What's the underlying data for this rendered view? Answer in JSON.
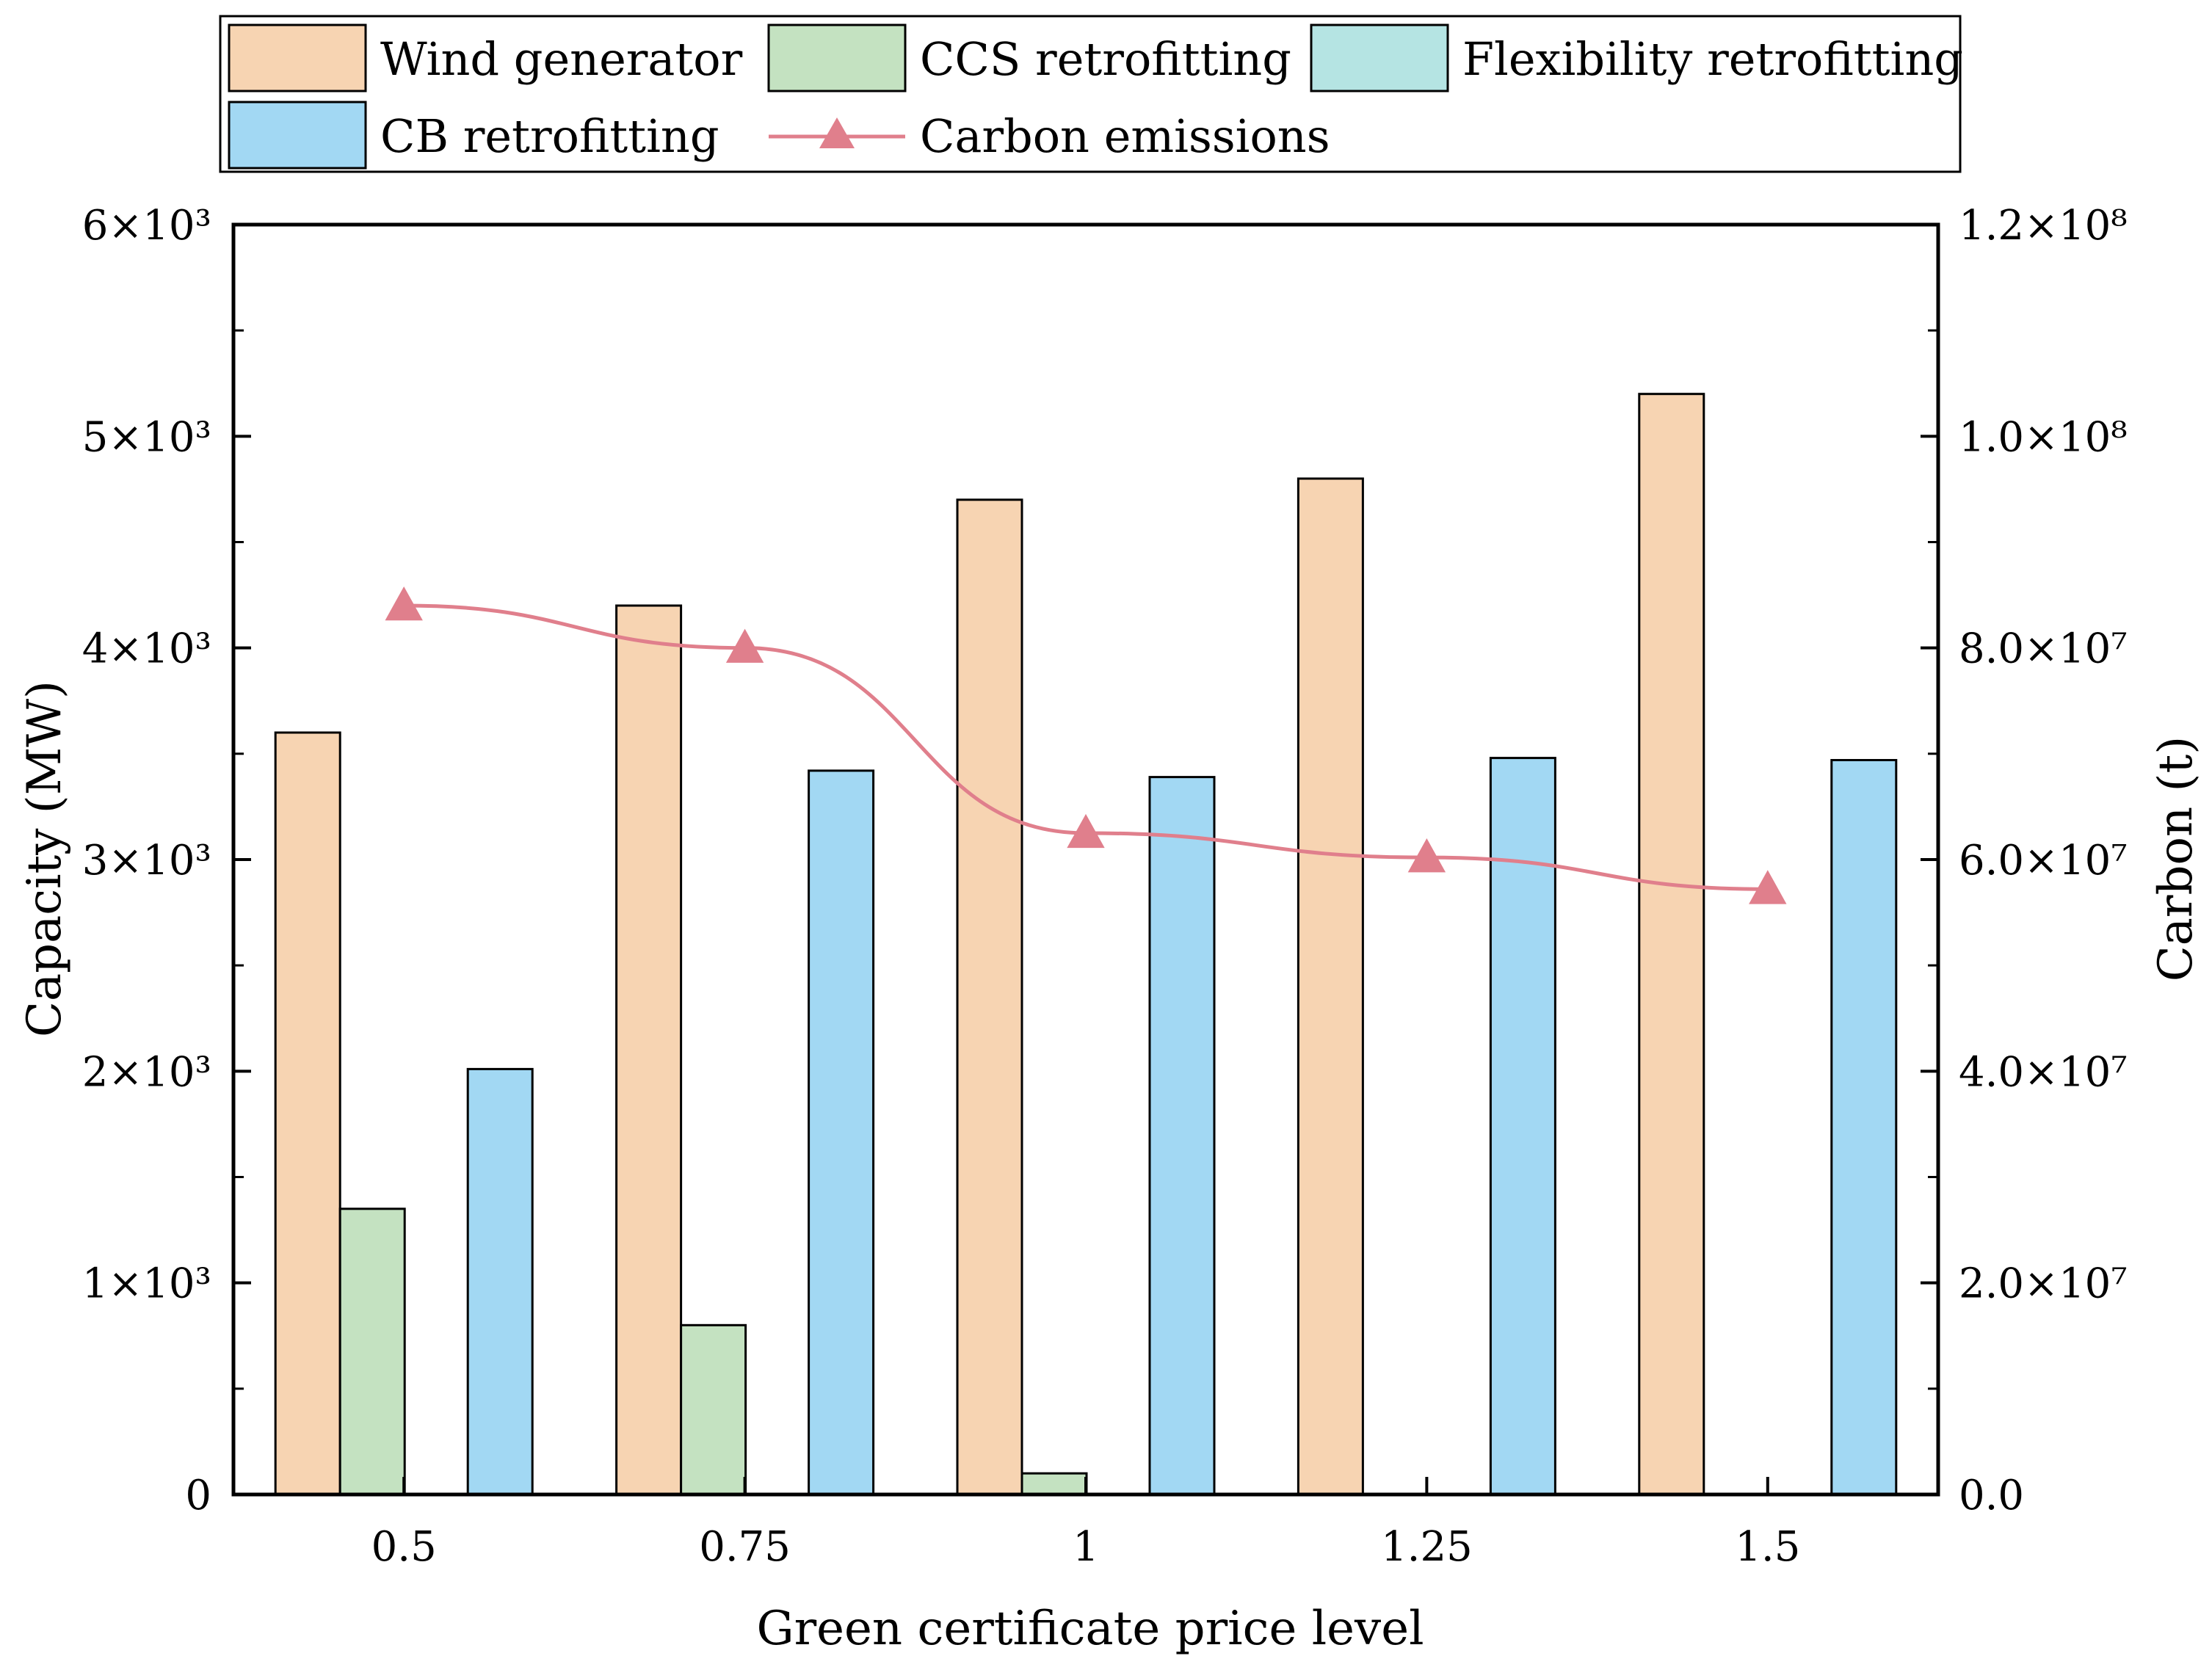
{
  "chart_data": {
    "type": "bar",
    "xlabel": "Green certificate price level",
    "ylabel": "Capacity (MW)",
    "y2label": "Carbon (t)",
    "categories": [
      "0.5",
      "0.75",
      "1",
      "1.25",
      "1.5"
    ],
    "ylim": [
      0,
      6000
    ],
    "y2lim": [
      0,
      120000000
    ],
    "yticks": [
      {
        "value": 0,
        "label": "0"
      },
      {
        "value": 1000,
        "label": "1×10³"
      },
      {
        "value": 2000,
        "label": "2×10³"
      },
      {
        "value": 3000,
        "label": "3×10³"
      },
      {
        "value": 4000,
        "label": "4×10³"
      },
      {
        "value": 5000,
        "label": "5×10³"
      },
      {
        "value": 6000,
        "label": "6×10³"
      }
    ],
    "y2ticks": [
      {
        "value": 0,
        "label": "0.0"
      },
      {
        "value": 20000000,
        "label": "2.0×10⁷"
      },
      {
        "value": 40000000,
        "label": "4.0×10⁷"
      },
      {
        "value": 60000000,
        "label": "6.0×10⁷"
      },
      {
        "value": 80000000,
        "label": "8.0×10⁷"
      },
      {
        "value": 100000000,
        "label": "1.0×10⁸"
      },
      {
        "value": 120000000,
        "label": "1.2×10⁸"
      }
    ],
    "series": [
      {
        "name": "Wind generator",
        "kind": "bar",
        "color": "#f7d4b2",
        "values": [
          3600,
          4200,
          4700,
          4800,
          5200
        ]
      },
      {
        "name": "CCS retrofitting",
        "kind": "bar",
        "color": "#c4e2c1",
        "values": [
          1350,
          800,
          100,
          0,
          0
        ]
      },
      {
        "name": "Flexibility retrofitting",
        "kind": "bar",
        "color": "#b5e4e3",
        "values": [
          0,
          0,
          0,
          0,
          0
        ]
      },
      {
        "name": "CB retrofitting",
        "kind": "bar",
        "color": "#a2d8f3",
        "values": [
          2010,
          3420,
          3390,
          3480,
          3470
        ]
      },
      {
        "name": "Carbon emissions",
        "kind": "line",
        "axis": "right",
        "color": "#e07f8c",
        "values": [
          84000000,
          80000000,
          62500000,
          60200000,
          57200000
        ]
      }
    ],
    "legend": "top"
  }
}
